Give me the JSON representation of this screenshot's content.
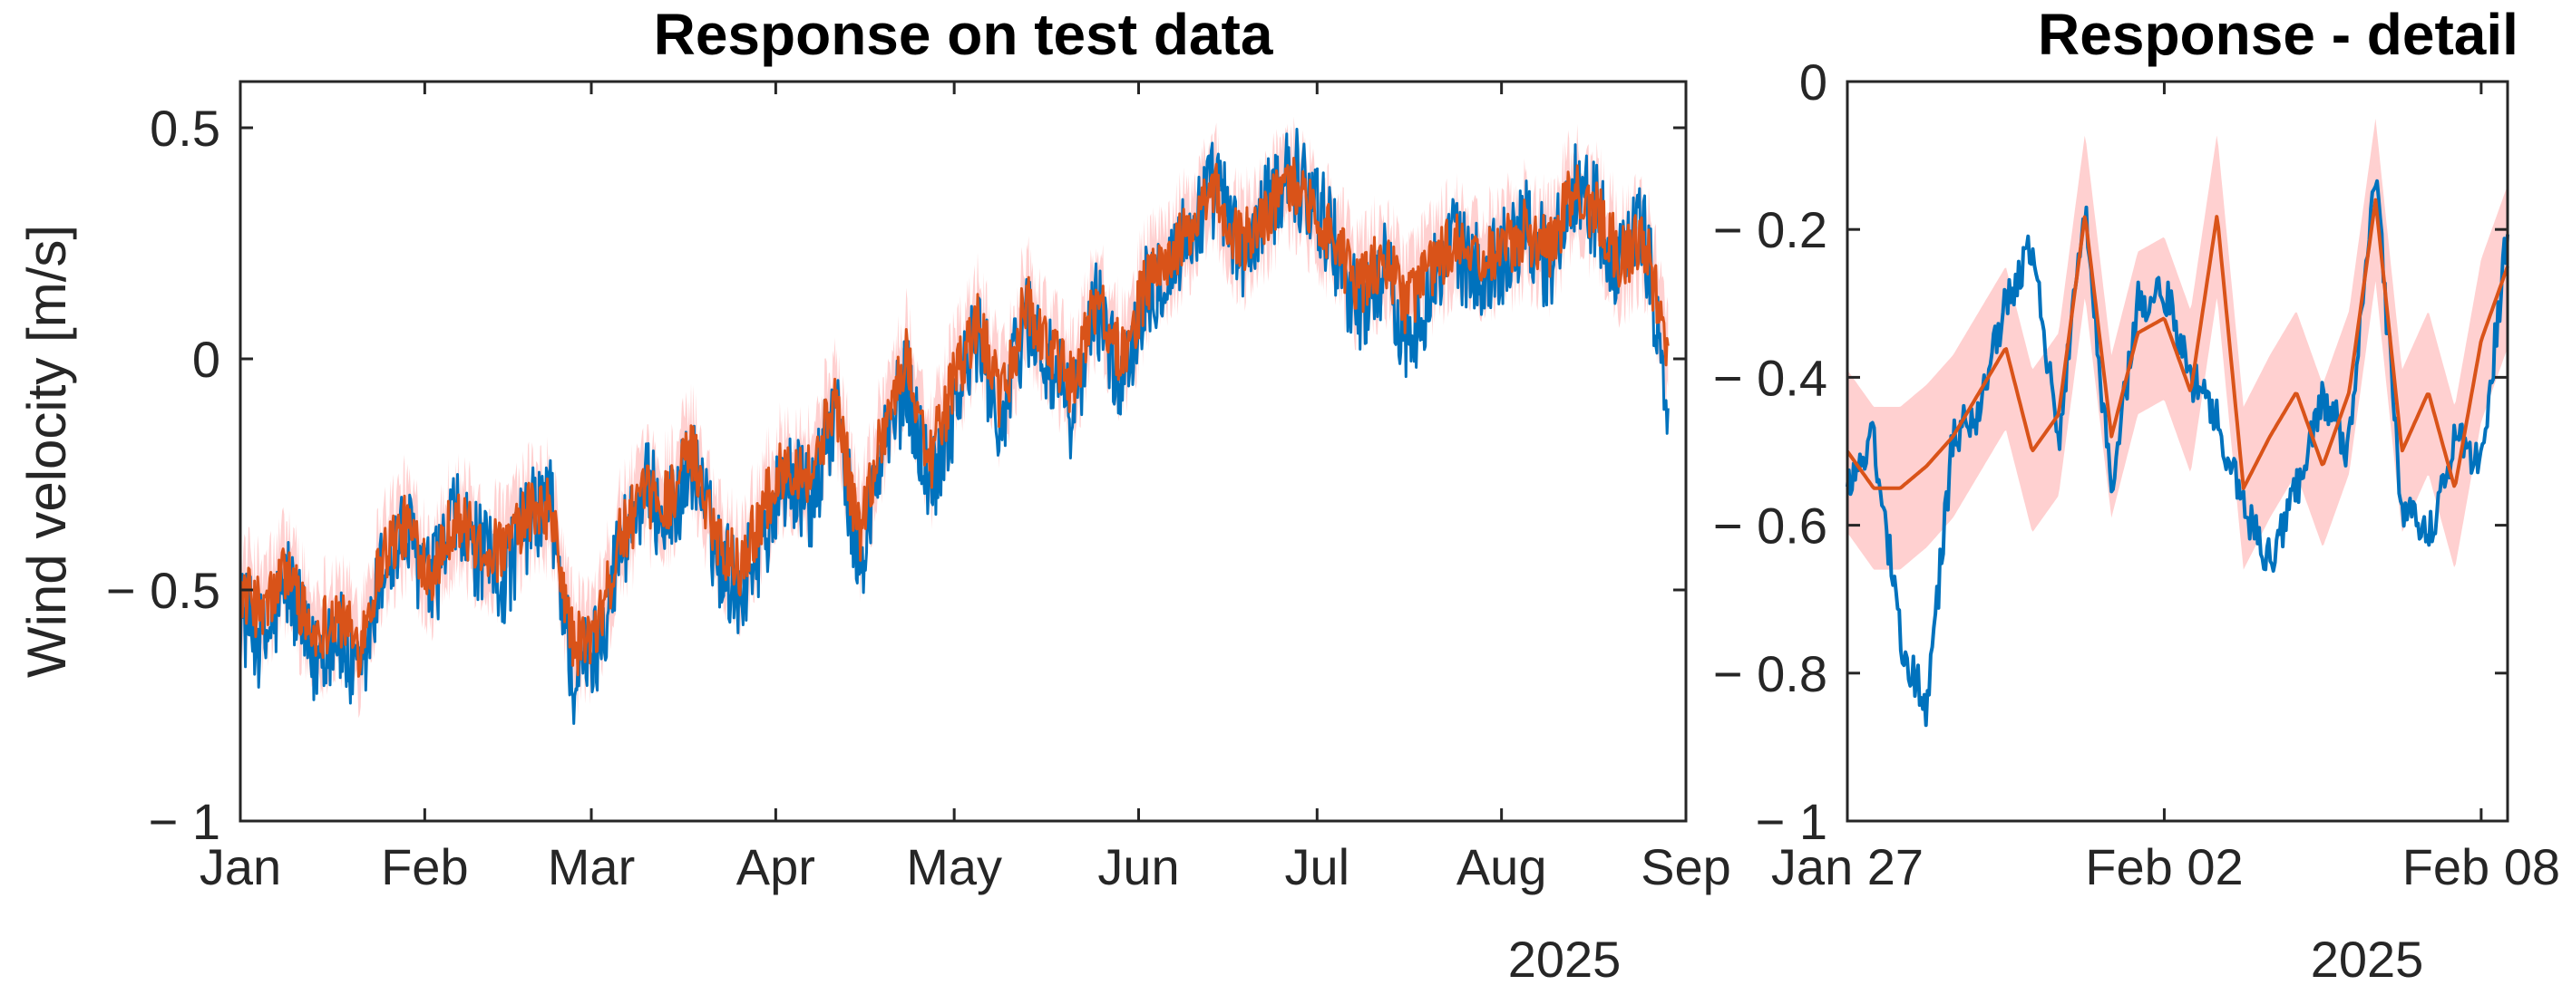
{
  "colors": {
    "measured": "#0072BD",
    "predicted": "#D95319",
    "confidence_band": "#FFC8C8",
    "axis": "#262626"
  },
  "y_axis_label": "Wind velocity [m/s]",
  "chart_data": [
    {
      "type": "line",
      "title": "Response on test data",
      "ylabel": "Wind velocity [m/s]",
      "xlabel": "",
      "ylim": [
        -1,
        0.6
      ],
      "xlim": [
        "2025-01-01",
        "2025-09-01"
      ],
      "x_ticks": [
        "Jan",
        "Feb",
        "Mar",
        "Apr",
        "May",
        "Jun",
        "Jul",
        "Aug",
        "Sep"
      ],
      "x_tick_dates": [
        "2025-01-01",
        "2025-02-01",
        "2025-03-01",
        "2025-04-01",
        "2025-05-01",
        "2025-06-01",
        "2025-07-01",
        "2025-08-01",
        "2025-09-01"
      ],
      "x_secondary_label": "2025",
      "y_ticks": [
        -1,
        -0.5,
        0,
        0.5
      ],
      "y_tick_labels": [
        "− 1",
        "− 0.5",
        "0",
        "0.5"
      ],
      "grid": false,
      "x": [
        "2025-01-01",
        "2025-01-05",
        "2025-01-09",
        "2025-01-13",
        "2025-01-17",
        "2025-01-21",
        "2025-01-25",
        "2025-01-29",
        "2025-02-02",
        "2025-02-06",
        "2025-02-10",
        "2025-02-14",
        "2025-02-18",
        "2025-02-22",
        "2025-02-26",
        "2025-03-02",
        "2025-03-06",
        "2025-03-10",
        "2025-03-14",
        "2025-03-18",
        "2025-03-22",
        "2025-03-26",
        "2025-03-30",
        "2025-04-03",
        "2025-04-07",
        "2025-04-11",
        "2025-04-15",
        "2025-04-19",
        "2025-04-23",
        "2025-04-27",
        "2025-05-01",
        "2025-05-05",
        "2025-05-09",
        "2025-05-13",
        "2025-05-17",
        "2025-05-21",
        "2025-05-25",
        "2025-05-29",
        "2025-06-02",
        "2025-06-06",
        "2025-06-10",
        "2025-06-14",
        "2025-06-18",
        "2025-06-22",
        "2025-06-26",
        "2025-06-30",
        "2025-07-04",
        "2025-07-08",
        "2025-07-12",
        "2025-07-16",
        "2025-07-20",
        "2025-07-24",
        "2025-07-28",
        "2025-08-01",
        "2025-08-05",
        "2025-08-09",
        "2025-08-13",
        "2025-08-17",
        "2025-08-21",
        "2025-08-25",
        "2025-08-29"
      ],
      "series": [
        {
          "role": "measured",
          "values": [
            -0.55,
            -0.62,
            -0.48,
            -0.66,
            -0.58,
            -0.72,
            -0.45,
            -0.38,
            -0.5,
            -0.35,
            -0.42,
            -0.48,
            -0.36,
            -0.3,
            -0.7,
            -0.62,
            -0.4,
            -0.28,
            -0.35,
            -0.22,
            -0.42,
            -0.5,
            -0.38,
            -0.25,
            -0.32,
            -0.1,
            -0.45,
            -0.2,
            -0.05,
            -0.28,
            -0.1,
            0.05,
            -0.15,
            0.1,
            -0.02,
            -0.12,
            0.12,
            -0.05,
            0.15,
            0.2,
            0.28,
            0.38,
            0.22,
            0.3,
            0.42,
            0.35,
            0.25,
            0.1,
            0.2,
            0.05,
            0.15,
            0.25,
            0.18,
            0.22,
            0.3,
            0.2,
            0.38,
            0.32,
            0.2,
            0.28,
            -0.1
          ]
        },
        {
          "role": "predicted",
          "values": [
            -0.5,
            -0.55,
            -0.45,
            -0.6,
            -0.55,
            -0.62,
            -0.42,
            -0.36,
            -0.46,
            -0.34,
            -0.4,
            -0.42,
            -0.34,
            -0.32,
            -0.62,
            -0.6,
            -0.38,
            -0.3,
            -0.3,
            -0.2,
            -0.38,
            -0.45,
            -0.32,
            -0.22,
            -0.25,
            -0.08,
            -0.38,
            -0.15,
            0.0,
            -0.22,
            -0.05,
            0.08,
            -0.1,
            0.12,
            0.02,
            -0.06,
            0.14,
            0.0,
            0.15,
            0.22,
            0.28,
            0.36,
            0.25,
            0.3,
            0.38,
            0.34,
            0.25,
            0.15,
            0.22,
            0.12,
            0.2,
            0.25,
            0.2,
            0.24,
            0.28,
            0.24,
            0.36,
            0.32,
            0.22,
            0.26,
            0.0
          ]
        }
      ]
    },
    {
      "type": "line",
      "title": "Response - detail",
      "ylabel": "",
      "xlabel": "",
      "ylim": [
        -1,
        0
      ],
      "xlim": [
        "2025-01-27",
        "2025-02-08 12:00"
      ],
      "x_ticks": [
        "Jan 27",
        "Feb 02",
        "Feb 08"
      ],
      "x_tick_dates": [
        "2025-01-27",
        "2025-02-02",
        "2025-02-08"
      ],
      "x_secondary_label": "2025",
      "y_ticks": [
        -1,
        -0.8,
        -0.6,
        -0.4,
        -0.2,
        0
      ],
      "y_tick_labels": [
        "− 1",
        "− 0.8",
        "− 0.6",
        "− 0.4",
        "− 0.2",
        "0"
      ],
      "grid": false,
      "x": [
        "2025-01-27 00:00",
        "2025-01-27 12:00",
        "2025-01-28 00:00",
        "2025-01-28 12:00",
        "2025-01-29 00:00",
        "2025-01-29 12:00",
        "2025-01-30 00:00",
        "2025-01-30 12:00",
        "2025-01-31 00:00",
        "2025-01-31 12:00",
        "2025-02-01 00:00",
        "2025-02-01 12:00",
        "2025-02-02 00:00",
        "2025-02-02 12:00",
        "2025-02-03 00:00",
        "2025-02-03 12:00",
        "2025-02-04 00:00",
        "2025-02-04 12:00",
        "2025-02-05 00:00",
        "2025-02-05 12:00",
        "2025-02-06 00:00",
        "2025-02-06 12:00",
        "2025-02-07 00:00",
        "2025-02-07 12:00",
        "2025-02-08 00:00",
        "2025-02-08 12:00"
      ],
      "series": [
        {
          "role": "measured",
          "values": [
            -0.55,
            -0.48,
            -0.75,
            -0.85,
            -0.48,
            -0.45,
            -0.3,
            -0.22,
            -0.48,
            -0.18,
            -0.55,
            -0.3,
            -0.28,
            -0.4,
            -0.45,
            -0.58,
            -0.65,
            -0.55,
            -0.42,
            -0.5,
            -0.12,
            -0.58,
            -0.62,
            -0.48,
            -0.52,
            -0.2
          ]
        },
        {
          "role": "predicted",
          "values": [
            -0.5,
            -0.55,
            -0.55,
            -0.52,
            -0.48,
            -0.42,
            -0.36,
            -0.5,
            -0.45,
            -0.18,
            -0.48,
            -0.34,
            -0.32,
            -0.42,
            -0.18,
            -0.55,
            -0.48,
            -0.42,
            -0.52,
            -0.42,
            -0.16,
            -0.5,
            -0.42,
            -0.55,
            -0.35,
            -0.25
          ]
        }
      ]
    }
  ]
}
